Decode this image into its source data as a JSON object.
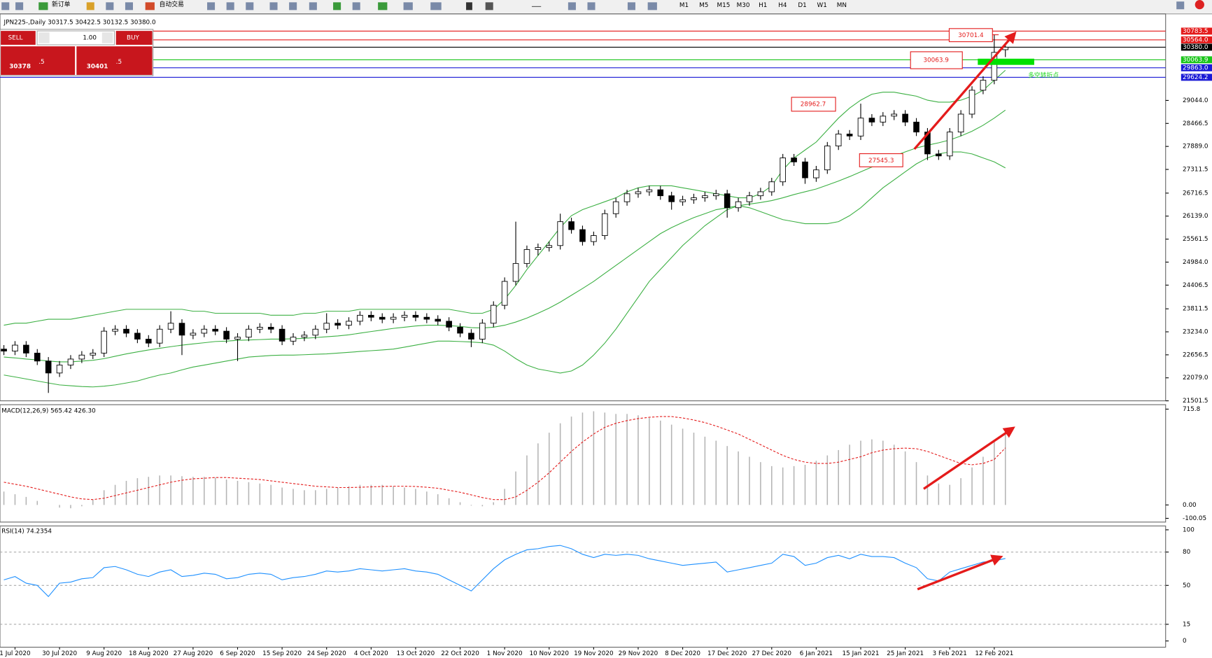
{
  "toolbar": {
    "buttons": [
      "新订单",
      "自动交易"
    ],
    "timeframes": [
      "M1",
      "M5",
      "M15",
      "M30",
      "H1",
      "H4",
      "D1",
      "W1",
      "MN"
    ]
  },
  "trade_panel": {
    "sell": "SELL",
    "buy": "BUY",
    "lot": "1.00",
    "sell_price": [
      "30378",
      ".5"
    ],
    "buy_price": [
      "30401",
      ".5"
    ]
  },
  "chart_data": [
    {
      "type": "candlestick",
      "title": "JPN225-,Daily  30317.5 30422.5 30132.5 30380.0",
      "up_color": "#ffffff",
      "down_color": "#000000",
      "open": [
        22800,
        22750,
        22900,
        22700,
        22500,
        22200,
        22400,
        22550,
        22650,
        22700,
        23250,
        23300,
        23200,
        23050,
        22950,
        23300,
        23450,
        23150,
        23200,
        23300,
        23250,
        23050,
        23100,
        23300,
        23350,
        23300,
        23000,
        23100,
        23150,
        23300,
        23450,
        23400,
        23500,
        23650,
        23600,
        23550,
        23600,
        23650,
        23600,
        23550,
        23500,
        23350,
        23200,
        23050,
        23450,
        23900,
        24500,
        24950,
        25300,
        25350,
        25400,
        26000,
        25800,
        25500,
        25650,
        26200,
        26500,
        26700,
        26750,
        26800,
        26650,
        26500,
        26550,
        26600,
        26650,
        26700,
        26350,
        26500,
        26650,
        26750,
        27000,
        27600,
        27500,
        27100,
        27300,
        27900,
        28200,
        28150,
        28600,
        28500,
        28650,
        28700,
        28500,
        28250,
        27700,
        27650,
        28250,
        28700,
        29300,
        29550,
        30317.5
      ],
      "high": [
        22900,
        23000,
        23000,
        22800,
        22600,
        22500,
        22650,
        22750,
        22800,
        23350,
        23400,
        23400,
        23300,
        23150,
        23400,
        23750,
        23550,
        23300,
        23400,
        23400,
        23350,
        23200,
        23400,
        23450,
        23450,
        23400,
        23200,
        23250,
        23400,
        23700,
        23550,
        23600,
        23750,
        23750,
        23700,
        23700,
        23750,
        23750,
        23700,
        23650,
        23600,
        23450,
        23300,
        23550,
        24000,
        24600,
        26000,
        25400,
        25450,
        25500,
        26200,
        26100,
        25900,
        25750,
        26300,
        26600,
        26800,
        26850,
        26900,
        26900,
        26750,
        26650,
        26700,
        26750,
        26800,
        26800,
        26600,
        26750,
        26850,
        27100,
        27700,
        27700,
        27600,
        27400,
        28000,
        28300,
        28300,
        28962.7,
        28700,
        28750,
        28800,
        28800,
        28600,
        28350,
        27800,
        28350,
        28800,
        29400,
        29650,
        30701.4,
        30422.5
      ],
      "low": [
        22650,
        22650,
        22600,
        22400,
        21700,
        22100,
        22300,
        22450,
        22550,
        22600,
        23150,
        23100,
        22950,
        22850,
        22850,
        23200,
        22650,
        23050,
        23100,
        23150,
        22950,
        22500,
        23000,
        23200,
        23200,
        22900,
        22900,
        23000,
        23050,
        23200,
        23300,
        23300,
        23400,
        23500,
        23450,
        23450,
        23500,
        23500,
        23450,
        23400,
        23250,
        23100,
        22850,
        22950,
        23350,
        23800,
        24400,
        24850,
        25150,
        25250,
        25300,
        25700,
        25400,
        25400,
        25550,
        26100,
        26400,
        26600,
        26650,
        26550,
        26300,
        26400,
        26450,
        26500,
        26550,
        26100,
        26250,
        26400,
        26550,
        26650,
        26900,
        27400,
        26950,
        27000,
        27200,
        27800,
        28050,
        28050,
        28400,
        28400,
        28550,
        28400,
        28150,
        27545.3,
        27550,
        27550,
        28150,
        28600,
        29200,
        29450,
        30132.5
      ],
      "close": [
        22750,
        22900,
        22700,
        22500,
        22200,
        22400,
        22550,
        22650,
        22700,
        23250,
        23300,
        23200,
        23050,
        22950,
        23300,
        23450,
        23150,
        23200,
        23300,
        23250,
        23050,
        23100,
        23300,
        23350,
        23300,
        23000,
        23100,
        23150,
        23300,
        23450,
        23400,
        23500,
        23650,
        23600,
        23550,
        23600,
        23650,
        23600,
        23550,
        23500,
        23350,
        23200,
        23050,
        23450,
        23900,
        24500,
        24950,
        25300,
        25350,
        25400,
        26000,
        25800,
        25500,
        25650,
        26200,
        26500,
        26700,
        26750,
        26800,
        26650,
        26500,
        26550,
        26600,
        26650,
        26700,
        26350,
        26500,
        26650,
        26750,
        27000,
        27600,
        27500,
        27100,
        27300,
        27900,
        28200,
        28150,
        28600,
        28500,
        28650,
        28700,
        28500,
        28250,
        27700,
        27650,
        28250,
        28700,
        29300,
        29550,
        30250,
        30380
      ],
      "bands": {
        "color": "#3cb043",
        "upper": [
          23400,
          23450,
          23450,
          23500,
          23550,
          23550,
          23550,
          23600,
          23650,
          23700,
          23750,
          23800,
          23800,
          23800,
          23800,
          23800,
          23800,
          23750,
          23750,
          23700,
          23700,
          23700,
          23700,
          23700,
          23650,
          23650,
          23650,
          23700,
          23700,
          23750,
          23750,
          23750,
          23800,
          23800,
          23800,
          23800,
          23800,
          23800,
          23800,
          23800,
          23800,
          23750,
          23700,
          23700,
          23800,
          24050,
          24400,
          24800,
          25150,
          25500,
          25850,
          26150,
          26300,
          26400,
          26500,
          26600,
          26750,
          26850,
          26900,
          26900,
          26900,
          26850,
          26800,
          26750,
          26700,
          26650,
          26600,
          26600,
          26700,
          26900,
          27300,
          27600,
          27800,
          28000,
          28300,
          28600,
          28850,
          29050,
          29200,
          29250,
          29250,
          29200,
          29150,
          29050,
          29000,
          29000,
          29050,
          29150,
          29300,
          29550,
          29800
        ],
        "middle": [
          22600,
          22580,
          22550,
          22530,
          22500,
          22480,
          22480,
          22500,
          22520,
          22560,
          22620,
          22680,
          22730,
          22780,
          22820,
          22860,
          22900,
          22930,
          22960,
          22990,
          23000,
          23020,
          23030,
          23040,
          23050,
          23050,
          23060,
          23070,
          23090,
          23110,
          23130,
          23160,
          23200,
          23240,
          23280,
          23320,
          23350,
          23380,
          23400,
          23400,
          23390,
          23370,
          23340,
          23330,
          23350,
          23400,
          23480,
          23580,
          23700,
          23830,
          23980,
          24150,
          24320,
          24500,
          24700,
          24900,
          25100,
          25300,
          25500,
          25700,
          25850,
          25980,
          26100,
          26200,
          26300,
          26350,
          26400,
          26440,
          26480,
          26530,
          26600,
          26680,
          26750,
          26820,
          26920,
          27020,
          27130,
          27250,
          27370,
          27480,
          27650,
          27750,
          27850,
          27920,
          27980,
          28050,
          28150,
          28270,
          28420,
          28600,
          28800
        ],
        "lower": [
          22150,
          22100,
          22050,
          22000,
          21950,
          21900,
          21880,
          21860,
          21850,
          21870,
          21900,
          21950,
          22000,
          22080,
          22150,
          22200,
          22280,
          22350,
          22400,
          22450,
          22500,
          22550,
          22600,
          22620,
          22640,
          22650,
          22650,
          22660,
          22670,
          22680,
          22700,
          22720,
          22740,
          22760,
          22780,
          22800,
          22850,
          22900,
          22950,
          23000,
          23000,
          22990,
          22980,
          22960,
          22900,
          22750,
          22560,
          22400,
          22300,
          22250,
          22200,
          22250,
          22400,
          22650,
          22950,
          23300,
          23700,
          24100,
          24500,
          24800,
          25100,
          25400,
          25650,
          25900,
          26100,
          26300,
          26400,
          26350,
          26250,
          26150,
          26050,
          26000,
          25950,
          25950,
          25950,
          26000,
          26150,
          26350,
          26600,
          26850,
          27050,
          27250,
          27450,
          27600,
          27700,
          27750,
          27750,
          27700,
          27600,
          27500,
          27350
        ]
      },
      "xlim": [
        -0.35,
        104.4
      ],
      "xticks": [
        {
          "value": 1,
          "label": "1 Jul 2020"
        },
        {
          "value": 5,
          "label": "30 Jul 2020"
        },
        {
          "value": 9,
          "label": "9 Aug 2020"
        },
        {
          "value": 13,
          "label": "18 Aug 2020"
        },
        {
          "value": 17,
          "label": "27 Aug 2020"
        },
        {
          "value": 21,
          "label": "6 Sep 2020"
        },
        {
          "value": 25,
          "label": "15 Sep 2020"
        },
        {
          "value": 29,
          "label": "24 Sep 2020"
        },
        {
          "value": 33,
          "label": "4 Oct 2020"
        },
        {
          "value": 37,
          "label": "13 Oct 2020"
        },
        {
          "value": 41,
          "label": "22 Oct 2020"
        },
        {
          "value": 45,
          "label": "1 Nov 2020"
        },
        {
          "value": 49,
          "label": "10 Nov 2020"
        },
        {
          "value": 53,
          "label": "19 Nov 2020"
        },
        {
          "value": 57,
          "label": "29 Nov 2020"
        },
        {
          "value": 61,
          "label": "8 Dec 2020"
        },
        {
          "value": 65,
          "label": "17 Dec 2020"
        },
        {
          "value": 69,
          "label": "27 Dec 2020"
        },
        {
          "value": 73,
          "label": "6 Jan 2021"
        },
        {
          "value": 77,
          "label": "15 Jan 2021"
        },
        {
          "value": 81,
          "label": "25 Jan 2021"
        },
        {
          "value": 85,
          "label": "3 Feb 2021"
        },
        {
          "value": 89,
          "label": "12 Feb 2021"
        }
      ],
      "ylim": [
        21501.5,
        31216
      ],
      "yticks": [
        21501.5,
        {
          "value": 22079,
          "label": "22079.0"
        },
        22656.5,
        {
          "value": 23234,
          "label": "23234.0"
        },
        23811.5,
        24406.5,
        {
          "value": 24984,
          "label": "24984.0"
        },
        25561.5,
        {
          "value": 26139,
          "label": "26139.0"
        },
        26716.5,
        27311.5,
        {
          "value": 27889,
          "label": "27889.0"
        },
        28466.5,
        {
          "value": 29044,
          "label": "29044.0"
        }
      ],
      "price_lines": [
        {
          "value": 30783.5,
          "label": "30783.5",
          "color": "#e41b1b"
        },
        {
          "value": 30564,
          "label": "30564.0",
          "color": "#e41b1b"
        },
        {
          "value": 30380,
          "label": "30380.0",
          "color": "#000000"
        },
        {
          "value": 30063.9,
          "label": "30063.9",
          "color": "#19c519"
        },
        {
          "value": 29863,
          "label": "29863.0",
          "color": "#1a1ad6"
        },
        {
          "value": 29624.2,
          "label": "29624.2",
          "color": "#1a1ad6"
        }
      ],
      "annotations": [
        30701.4,
        30063.9,
        28962.7,
        27545.3
      ],
      "note": "多空转折点"
    },
    {
      "type": "macd",
      "title": "MACD(12,26,9) 565.42 426.30",
      "histogram": {
        "color": "#b4b4b4",
        "values": [
          100,
          80,
          60,
          30,
          0,
          -20,
          -25,
          -10,
          40,
          110,
          150,
          180,
          200,
          210,
          220,
          220,
          215,
          210,
          210,
          205,
          190,
          180,
          170,
          160,
          150,
          130,
          120,
          110,
          110,
          120,
          130,
          140,
          150,
          150,
          150,
          140,
          130,
          120,
          100,
          80,
          50,
          20,
          -5,
          -10,
          20,
          120,
          250,
          370,
          460,
          540,
          610,
          660,
          690,
          700,
          690,
          680,
          680,
          670,
          650,
          630,
          600,
          570,
          540,
          510,
          480,
          440,
          400,
          360,
          320,
          290,
          280,
          290,
          300,
          330,
          370,
          410,
          450,
          480,
          490,
          480,
          450,
          400,
          320,
          220,
          160,
          150,
          200,
          280,
          360,
          470,
          565.42
        ]
      },
      "signal": {
        "color": "#e41b1b",
        "values": [
          170,
          155,
          140,
          120,
          100,
          80,
          60,
          45,
          40,
          50,
          70,
          90,
          110,
          130,
          150,
          170,
          185,
          195,
          200,
          205,
          205,
          200,
          195,
          190,
          180,
          170,
          160,
          150,
          140,
          135,
          130,
          130,
          132,
          135,
          138,
          140,
          140,
          138,
          132,
          125,
          110,
          95,
          75,
          55,
          40,
          40,
          60,
          110,
          170,
          240,
          320,
          400,
          470,
          530,
          580,
          610,
          630,
          645,
          655,
          660,
          660,
          650,
          635,
          615,
          590,
          560,
          530,
          490,
          450,
          410,
          370,
          340,
          320,
          310,
          310,
          320,
          340,
          360,
          390,
          410,
          420,
          425,
          420,
          400,
          370,
          340,
          310,
          300,
          310,
          340,
          426.3
        ]
      },
      "ylim": [
        -128,
        749
      ],
      "yticks": [
        715.8,
        {
          "value": 0,
          "label": "0.00"
        },
        -100.05
      ]
    },
    {
      "type": "line",
      "title": "RSI(14) 74.2354",
      "color": "#1e90ff",
      "values": [
        55,
        58,
        52,
        50,
        40,
        52,
        53,
        56,
        57,
        66,
        67,
        64,
        60,
        58,
        62,
        64,
        58,
        59,
        61,
        60,
        56,
        57,
        60,
        61,
        60,
        55,
        57,
        58,
        60,
        63,
        62,
        63,
        65,
        64,
        63,
        64,
        65,
        63,
        62,
        60,
        55,
        50,
        45,
        55,
        65,
        73,
        78,
        82,
        83,
        85,
        86,
        83,
        78,
        75,
        78,
        77,
        78,
        77,
        74,
        72,
        70,
        68,
        69,
        70,
        71,
        62,
        64,
        66,
        68,
        70,
        78,
        76,
        68,
        70,
        75,
        77,
        74,
        78,
        76,
        76,
        75,
        70,
        66,
        56,
        54,
        62,
        65,
        68,
        71,
        72,
        74.2354
      ],
      "ylim": [
        -5.6,
        103.5
      ],
      "yticks": [
        100,
        80,
        50,
        15,
        0
      ],
      "levels": [
        80,
        50,
        15
      ]
    }
  ]
}
